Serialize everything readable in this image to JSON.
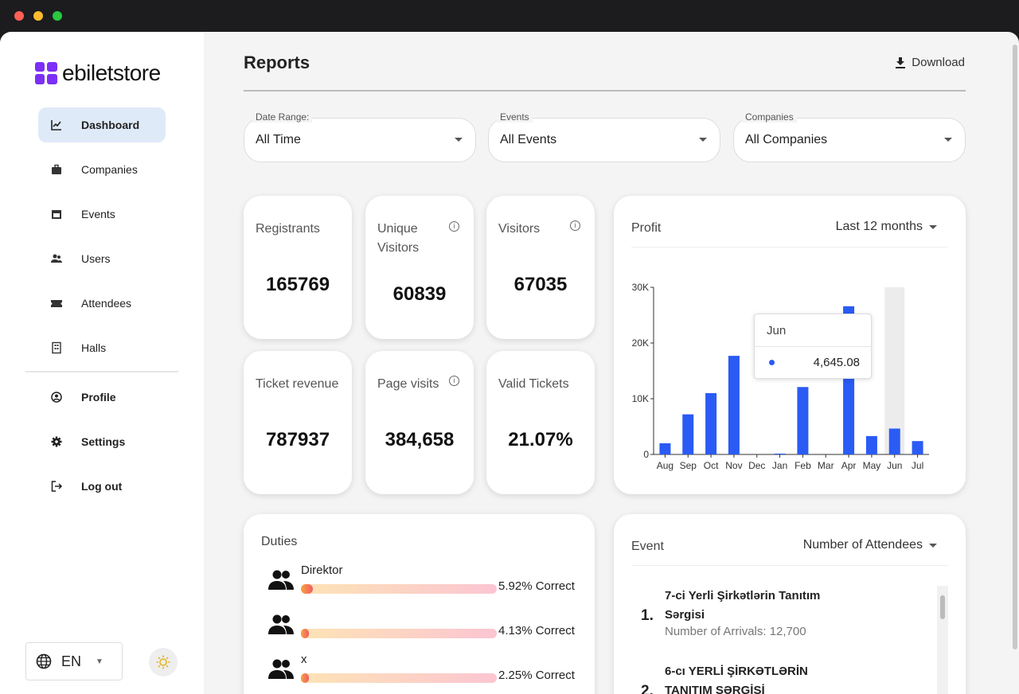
{
  "colors": {
    "accent": "#2a5bf5",
    "brand": "#7b2ff7",
    "nav_active_bg": "#dfeaf9"
  },
  "brand": {
    "name": "ebiletstore"
  },
  "sidebar": {
    "items": [
      {
        "label": "Dashboard",
        "icon": "chart-line-icon"
      },
      {
        "label": "Companies",
        "icon": "briefcase-icon"
      },
      {
        "label": "Events",
        "icon": "calendar-icon"
      },
      {
        "label": "Users",
        "icon": "users-icon"
      },
      {
        "label": "Attendees",
        "icon": "ticket-icon"
      },
      {
        "label": "Halls",
        "icon": "building-icon"
      }
    ],
    "secondary": [
      {
        "label": "Profile",
        "icon": "user-circle-icon"
      },
      {
        "label": "Settings",
        "icon": "gear-icon"
      },
      {
        "label": "Log out",
        "icon": "logout-icon"
      }
    ],
    "language": "EN"
  },
  "header": {
    "title": "Reports",
    "download_label": "Download"
  },
  "filters": [
    {
      "label": "Date Range:",
      "value": "All Time"
    },
    {
      "label": "Events",
      "value": "All Events"
    },
    {
      "label": "Companies",
      "value": "All Companies"
    }
  ],
  "stats": [
    {
      "title": "Registrants",
      "value": "165769"
    },
    {
      "title": "Unique Visitors",
      "value": "60839"
    },
    {
      "title": "Visitors",
      "value": "67035"
    },
    {
      "title": "Ticket revenue",
      "value": "787937"
    },
    {
      "title": "Page visits",
      "value": "384,658"
    },
    {
      "title": "Valid Tickets",
      "value": "21.07%"
    }
  ],
  "profit": {
    "title": "Profit",
    "range": "Last 12 months",
    "tooltip_month": "Jun",
    "tooltip_value": "4,645.08"
  },
  "chart_data": {
    "type": "bar",
    "categories": [
      "Aug",
      "Sep",
      "Oct",
      "Nov",
      "Dec",
      "Jan",
      "Feb",
      "Mar",
      "Apr",
      "May",
      "Jun",
      "Jul"
    ],
    "values": [
      2000,
      7200,
      11000,
      17700,
      0,
      150,
      12100,
      0,
      26600,
      3300,
      4645.08,
      2400
    ],
    "yticks": [
      "0",
      "10K",
      "20K",
      "30K"
    ],
    "ylim": [
      0,
      30000
    ],
    "highlight": "Jun",
    "color": "#2a5bf5"
  },
  "duties": {
    "title": "Duties",
    "items": [
      {
        "name": "Direktor",
        "pct": "5.92% Correct",
        "fill": 0.0592
      },
      {
        "name": "",
        "pct": "4.13% Correct",
        "fill": 0.0413
      },
      {
        "name": "x",
        "pct": "2.25% Correct",
        "fill": 0.0225
      }
    ]
  },
  "events": {
    "title": "Event",
    "sort": "Number of Attendees",
    "items": [
      {
        "rank": "1.",
        "name": "7-ci Yerli Şirkətlərin Tanıtım Sərgisi",
        "sub": "Number of Arrivals: 12,700"
      },
      {
        "rank": "2.",
        "name": "6-cı YERLİ ŞİRKƏTLƏRİN TANITIM SƏRGİSİ",
        "sub": ""
      }
    ]
  }
}
